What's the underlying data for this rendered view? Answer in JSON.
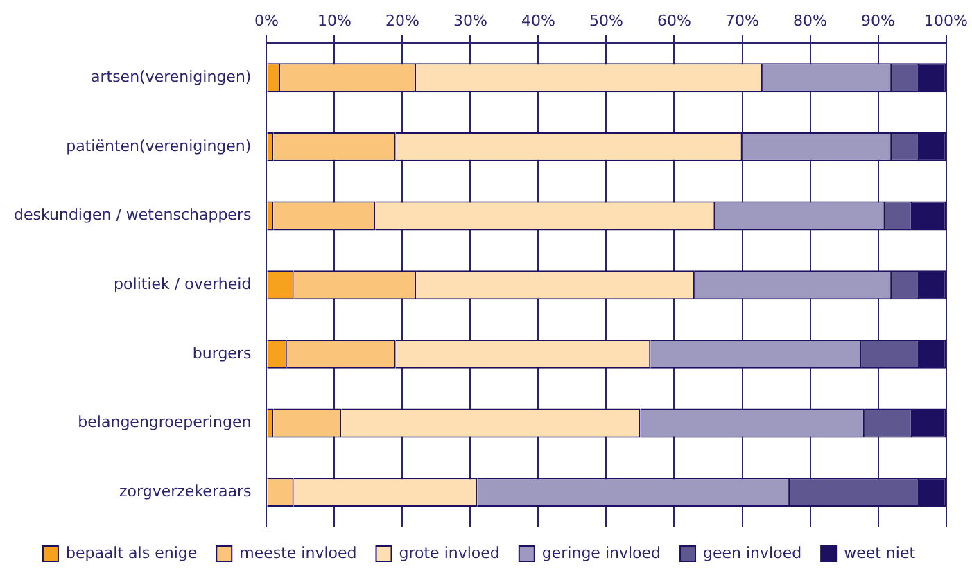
{
  "chart_data": {
    "type": "bar",
    "orientation": "horizontal",
    "stacked": true,
    "categories": [
      "artsen(verenigingen)",
      "patiënten(verenigingen)",
      "deskundigen / wetenschappers",
      "politiek / overheid",
      "burgers",
      "belangengroeperingen",
      "zorgverzekeraars"
    ],
    "series": [
      {
        "name": "bepaalt als enige",
        "color": "#f7a21f",
        "values": [
          2,
          1,
          1,
          4,
          3,
          1,
          0
        ]
      },
      {
        "name": "meeste invloed",
        "color": "#fac57a",
        "values": [
          20,
          18,
          15,
          18,
          16,
          10,
          4
        ]
      },
      {
        "name": "grote invloed",
        "color": "#fddfb3",
        "values": [
          51,
          51,
          50,
          41,
          37.5,
          44,
          27
        ]
      },
      {
        "name": "geringe invloed",
        "color": "#9e9abf",
        "values": [
          19,
          22,
          25,
          29,
          31,
          33,
          46
        ]
      },
      {
        "name": "geen invloed",
        "color": "#5f578f",
        "values": [
          4,
          4,
          4,
          4,
          8.5,
          7,
          19
        ]
      },
      {
        "name": "weet niet",
        "color": "#1e1060",
        "values": [
          4,
          4,
          5,
          4,
          4,
          5,
          4
        ]
      }
    ],
    "xlim": [
      0,
      100
    ],
    "xticks": [
      {
        "value": 0,
        "label": "0%"
      },
      {
        "value": 10,
        "label": "10%"
      },
      {
        "value": 20,
        "label": "20%"
      },
      {
        "value": 30,
        "label": "30%"
      },
      {
        "value": 40,
        "label": "40%"
      },
      {
        "value": 50,
        "label": "50%"
      },
      {
        "value": 60,
        "label": "60%"
      },
      {
        "value": 70,
        "label": "70%"
      },
      {
        "value": 80,
        "label": "80%"
      },
      {
        "value": 90,
        "label": "90%"
      },
      {
        "value": 100,
        "label": "100%"
      }
    ],
    "grid": "x",
    "legend": "bottom"
  }
}
